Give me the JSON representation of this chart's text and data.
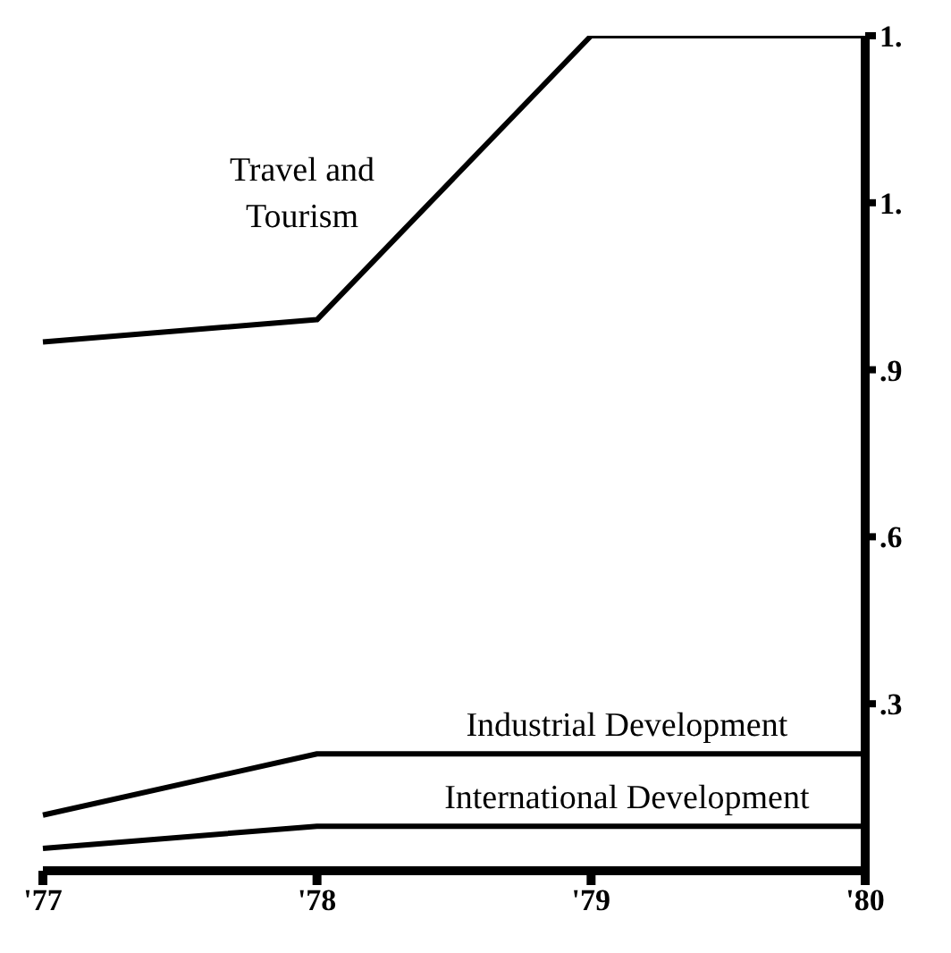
{
  "chart_data": {
    "type": "line",
    "categories": [
      "'77",
      "'78",
      "'79",
      "'80"
    ],
    "series": [
      {
        "name": "Travel and Tourism",
        "color": "#000000",
        "values": [
          0.95,
          0.99,
          1.5,
          1.5
        ]
      },
      {
        "name": "Industrial Development",
        "color": "#000000",
        "values": [
          0.1,
          0.21,
          0.21,
          0.21
        ]
      },
      {
        "name": "International Development",
        "color": "#000000",
        "values": [
          0.04,
          0.08,
          0.08,
          0.08
        ]
      }
    ],
    "ylim": [
      0,
      1.5
    ],
    "yticks": [
      {
        "value": 0.3,
        "label": ".3"
      },
      {
        "value": 0.6,
        "label": ".6"
      },
      {
        "value": 0.9,
        "label": ".9"
      },
      {
        "value": 1.2,
        "label": "1."
      },
      {
        "value": 1.5,
        "label": "1."
      }
    ],
    "grid": false,
    "legend": false,
    "marker": "none",
    "line_style": "solid"
  }
}
